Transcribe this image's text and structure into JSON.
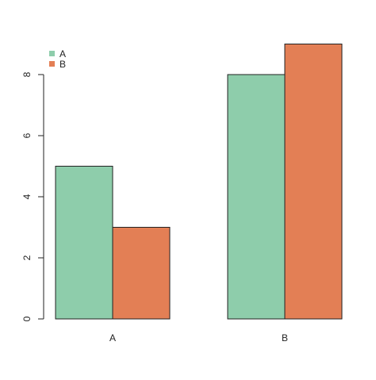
{
  "chart_data": {
    "type": "bar",
    "categories": [
      "A",
      "B"
    ],
    "series": [
      {
        "name": "A",
        "values": [
          5,
          8
        ],
        "color": "#8ecdab"
      },
      {
        "name": "B",
        "values": [
          3,
          9
        ],
        "color": "#e37f55"
      }
    ],
    "title": "",
    "xlabel": "",
    "ylabel": "",
    "ylim": [
      0,
      9
    ],
    "yticks": [
      0,
      2,
      4,
      6,
      8
    ],
    "grid": false,
    "legend_position": "top-left",
    "bar_outline_color": "#222222"
  }
}
